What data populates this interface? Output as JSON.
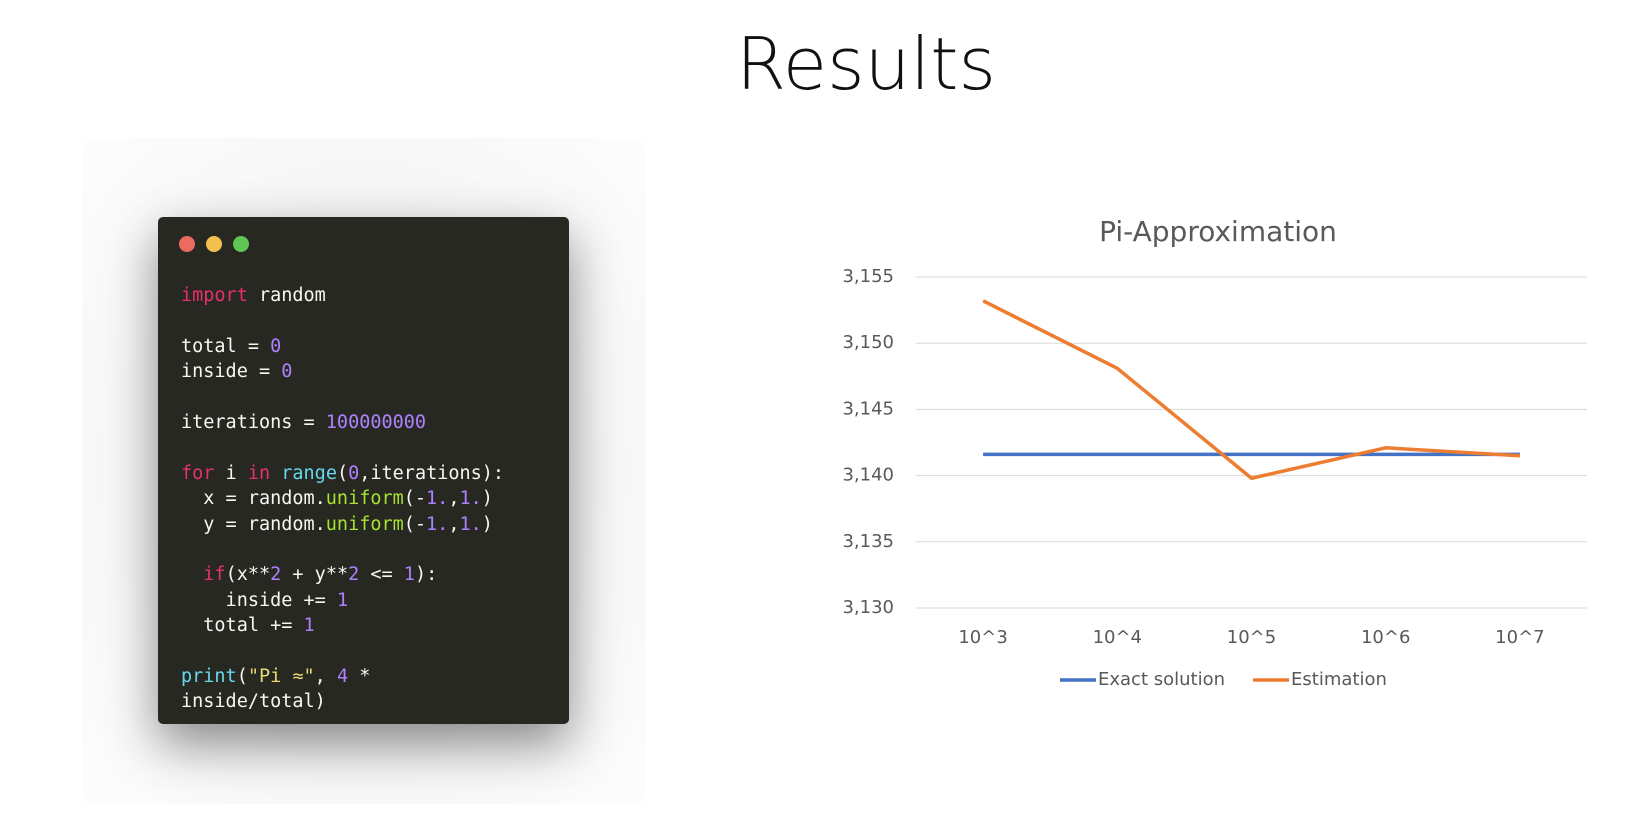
{
  "title": "Results",
  "code": [
    [
      {
        "text": "import",
        "color": "#e8306c"
      },
      {
        "text": " random",
        "color": "#f8f8f2"
      }
    ],
    [],
    [
      {
        "text": "total = ",
        "color": "#f8f8f2"
      },
      {
        "text": "0",
        "color": "#ae81ff"
      }
    ],
    [
      {
        "text": "inside = ",
        "color": "#f8f8f2"
      },
      {
        "text": "0",
        "color": "#ae81ff"
      }
    ],
    [],
    [
      {
        "text": "iterations = ",
        "color": "#f8f8f2"
      },
      {
        "text": "100000000",
        "color": "#ae81ff"
      }
    ],
    [],
    [
      {
        "text": "for",
        "color": "#e8306c"
      },
      {
        "text": " i ",
        "color": "#f8f8f2"
      },
      {
        "text": "in",
        "color": "#e8306c"
      },
      {
        "text": " ",
        "color": "#f8f8f2"
      },
      {
        "text": "range",
        "color": "#66d9ef"
      },
      {
        "text": "(",
        "color": "#f8f8f2"
      },
      {
        "text": "0",
        "color": "#ae81ff"
      },
      {
        "text": ",iterations):",
        "color": "#f8f8f2"
      }
    ],
    [
      {
        "text": "  x = random.",
        "color": "#f8f8f2"
      },
      {
        "text": "uniform",
        "color": "#a6e22e"
      },
      {
        "text": "(-",
        "color": "#f8f8f2"
      },
      {
        "text": "1.",
        "color": "#ae81ff"
      },
      {
        "text": ",",
        "color": "#f8f8f2"
      },
      {
        "text": "1.",
        "color": "#ae81ff"
      },
      {
        "text": ")",
        "color": "#f8f8f2"
      }
    ],
    [
      {
        "text": "  y = random.",
        "color": "#f8f8f2"
      },
      {
        "text": "uniform",
        "color": "#a6e22e"
      },
      {
        "text": "(-",
        "color": "#f8f8f2"
      },
      {
        "text": "1.",
        "color": "#ae81ff"
      },
      {
        "text": ",",
        "color": "#f8f8f2"
      },
      {
        "text": "1.",
        "color": "#ae81ff"
      },
      {
        "text": ")",
        "color": "#f8f8f2"
      }
    ],
    [],
    [
      {
        "text": "  ",
        "color": "#f8f8f2"
      },
      {
        "text": "if",
        "color": "#e8306c"
      },
      {
        "text": "(x**",
        "color": "#f8f8f2"
      },
      {
        "text": "2",
        "color": "#ae81ff"
      },
      {
        "text": " + y**",
        "color": "#f8f8f2"
      },
      {
        "text": "2",
        "color": "#ae81ff"
      },
      {
        "text": " <= ",
        "color": "#f8f8f2"
      },
      {
        "text": "1",
        "color": "#ae81ff"
      },
      {
        "text": "):",
        "color": "#f8f8f2"
      }
    ],
    [
      {
        "text": "    inside += ",
        "color": "#f8f8f2"
      },
      {
        "text": "1",
        "color": "#ae81ff"
      }
    ],
    [
      {
        "text": "  total += ",
        "color": "#f8f8f2"
      },
      {
        "text": "1",
        "color": "#ae81ff"
      }
    ],
    [],
    [
      {
        "text": "print",
        "color": "#66d9ef"
      },
      {
        "text": "(",
        "color": "#f8f8f2"
      },
      {
        "text": "\"Pi ≈\"",
        "color": "#e6db74"
      },
      {
        "text": ", ",
        "color": "#f8f8f2"
      },
      {
        "text": "4",
        "color": "#ae81ff"
      },
      {
        "text": " *",
        "color": "#f8f8f2"
      }
    ],
    [
      {
        "text": "inside/total)",
        "color": "#f8f8f2"
      }
    ]
  ],
  "chart_data": {
    "type": "line",
    "title": "Pi-Approximation",
    "categories": [
      "10^3",
      "10^4",
      "10^5",
      "10^6",
      "10^7"
    ],
    "series": [
      {
        "name": "Exact solution",
        "color": "#4472c4",
        "values": [
          3.1416,
          3.1416,
          3.1416,
          3.1416,
          3.1416
        ]
      },
      {
        "name": "Estimation",
        "color": "#ed7d31",
        "values": [
          3.1532,
          3.1481,
          3.1398,
          3.1421,
          3.1415
        ]
      }
    ],
    "ylim": [
      3.13,
      3.155
    ],
    "yticks": [
      {
        "value": 3.13,
        "label": "3,130"
      },
      {
        "value": 3.135,
        "label": "3,135"
      },
      {
        "value": 3.14,
        "label": "3,140"
      },
      {
        "value": 3.145,
        "label": "3,145"
      },
      {
        "value": 3.15,
        "label": "3,150"
      },
      {
        "value": 3.155,
        "label": "3,155"
      }
    ],
    "grid": true,
    "legend": "bottom"
  }
}
